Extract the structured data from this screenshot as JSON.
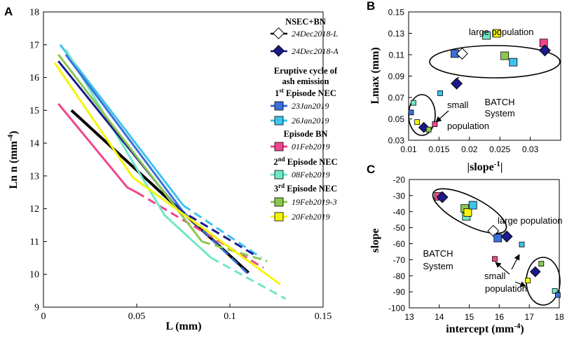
{
  "colors": {
    "nsec_l": "#ffffff",
    "nsec_a": "#1a1a8c",
    "jan23": "#3b6fd9",
    "jan26": "#3ec3ec",
    "feb01": "#f0468c",
    "feb08": "#6ee8c8",
    "feb19": "#8cc850",
    "feb20": "#f5f50a",
    "black": "#000000"
  },
  "chart_data": [
    {
      "panel": "A",
      "type": "line",
      "xlabel": "L (mm)",
      "ylabel": "Ln n (mm",
      "ylabel_sup": "-4",
      "ylabel_close": ")",
      "xlim": [
        0,
        0.15
      ],
      "ylim": [
        9,
        18
      ],
      "xticks": [
        0,
        0.05,
        0.1,
        0.15
      ],
      "xtick_labels": [
        "0",
        "0.05",
        "0.1",
        "0.15"
      ],
      "yticks": [
        9,
        10,
        11,
        12,
        13,
        14,
        15,
        16,
        17,
        18
      ],
      "ytick_labels": [
        "9",
        "10",
        "11",
        "12",
        "13",
        "14",
        "15",
        "16",
        "17",
        "18"
      ],
      "series": [
        {
          "name": "black",
          "color": "#000000",
          "dash": false,
          "width": 4,
          "points": [
            [
              0.015,
              15.0
            ],
            [
              0.11,
              10.05
            ]
          ]
        },
        {
          "name": "01Feb2019",
          "color": "#f0468c",
          "dash": false,
          "width": 3,
          "points": [
            [
              0.008,
              15.2
            ],
            [
              0.045,
              12.65
            ],
            [
              0.05,
              12.5
            ]
          ]
        },
        {
          "name": "01Feb2019-tail",
          "color": "#f0468c",
          "dash": true,
          "width": 3,
          "points": [
            [
              0.05,
              12.5
            ],
            [
              0.118,
              10.2
            ]
          ]
        },
        {
          "name": "26Jan2019",
          "color": "#3ec3ec",
          "dash": false,
          "width": 3,
          "points": [
            [
              0.009,
              17.0
            ],
            [
              0.075,
              12.1
            ]
          ]
        },
        {
          "name": "26Jan2019-tail",
          "color": "#3ec3ec",
          "dash": true,
          "width": 3,
          "points": [
            [
              0.075,
              12.1
            ],
            [
              0.117,
              10.5
            ]
          ]
        },
        {
          "name": "08Feb2019",
          "color": "#6ee8c8",
          "dash": false,
          "width": 3,
          "points": [
            [
              0.012,
              16.85
            ],
            [
              0.065,
              11.8
            ],
            [
              0.09,
              10.5
            ]
          ]
        },
        {
          "name": "08Feb2019-tail",
          "color": "#6ee8c8",
          "dash": true,
          "width": 3,
          "points": [
            [
              0.09,
              10.5
            ],
            [
              0.13,
              9.25
            ]
          ]
        },
        {
          "name": "23Jan2019",
          "color": "#3b6fd9",
          "dash": false,
          "width": 3,
          "points": [
            [
              0.012,
              16.7
            ],
            [
              0.075,
              11.9
            ]
          ]
        },
        {
          "name": "23Jan2019-tail",
          "color": "#3b6fd9",
          "dash": true,
          "width": 3,
          "points": [
            [
              0.075,
              11.9
            ],
            [
              0.11,
              10.0
            ]
          ]
        },
        {
          "name": "24Dec2018-A",
          "color": "#1a1a8c",
          "dash": false,
          "width": 3,
          "points": [
            [
              0.008,
              16.5
            ],
            [
              0.072,
              12.0
            ]
          ]
        },
        {
          "name": "24Dec2018-A-tail",
          "color": "#1a1a8c",
          "dash": true,
          "width": 3,
          "points": [
            [
              0.072,
              12.0
            ],
            [
              0.113,
              10.6
            ]
          ]
        },
        {
          "name": "19Feb2019-3",
          "color": "#8cc850",
          "dash": false,
          "width": 3,
          "points": [
            [
              0.008,
              16.7
            ],
            [
              0.085,
              11.0
            ]
          ]
        },
        {
          "name": "19Feb2019-3-tail",
          "color": "#8cc850",
          "dash": true,
          "width": 3,
          "points": [
            [
              0.085,
              11.0
            ],
            [
              0.12,
              10.4
            ]
          ]
        },
        {
          "name": "20Feb2019",
          "color": "#f5f50a",
          "dash": false,
          "width": 3,
          "points": [
            [
              0.006,
              16.45
            ],
            [
              0.048,
              12.95
            ],
            [
              0.127,
              9.7
            ]
          ]
        }
      ],
      "legend": {
        "title1": "NSEC+BN",
        "entries_nsec": [
          {
            "label": "24Dec2018-L",
            "color": "#ffffff",
            "marker": "diamond"
          },
          {
            "label": "24Dec2018-A",
            "color": "#1a1a8c",
            "marker": "diamond"
          }
        ],
        "title2_line1": "Eruptive cycle of",
        "title2_line2": "ash emission",
        "ep1_pre": "1",
        "ep1_sup": "st",
        "ep1_post": " Episode NEC",
        "ep1_entries": [
          {
            "label": "23Jan2019",
            "color": "#3b6fd9"
          },
          {
            "label": "26Jan2019",
            "color": "#3ec3ec"
          }
        ],
        "epbn": "Episode BN",
        "epbn_entries": [
          {
            "label": "01Feb2019",
            "color": "#f0468c"
          }
        ],
        "ep2_pre": "2",
        "ep2_sup": "nd",
        "ep2_post": " Episode NEC",
        "ep2_entries": [
          {
            "label": "08Feb2019",
            "color": "#6ee8c8"
          }
        ],
        "ep3_pre": "3",
        "ep3_sup": "rd",
        "ep3_post": " Episode NEC",
        "ep3_entries": [
          {
            "label": "19Feb2019-3",
            "color": "#8cc850"
          },
          {
            "label": "20Feb2019",
            "color": "#f5f50a"
          }
        ]
      }
    },
    {
      "panel": "B",
      "type": "scatter",
      "xlabel": "|slope",
      "xlabel_sup": "-1",
      "xlabel_close": "|",
      "ylabel": "Lmax (mm)",
      "xlim": [
        0.01,
        0.035
      ],
      "ylim": [
        0.03,
        0.15
      ],
      "xticks": [
        0.01,
        0.015,
        0.02,
        0.025,
        0.03
      ],
      "xtick_labels": [
        "0.01",
        "0.015",
        "0.02",
        "0.025",
        "0.03"
      ],
      "yticks": [
        0.03,
        0.05,
        0.07,
        0.09,
        0.11,
        0.13,
        0.15
      ],
      "ytick_labels": [
        "0.03",
        "0.05",
        "0.07",
        "0.09",
        "0.11",
        "0.13",
        "0.15"
      ],
      "points": [
        {
          "x": 0.0104,
          "y": 0.056,
          "color": "#3b6fd9",
          "marker": "square",
          "size": "s"
        },
        {
          "x": 0.0108,
          "y": 0.065,
          "color": "#6ee8c8",
          "marker": "square",
          "size": "s"
        },
        {
          "x": 0.0114,
          "y": 0.047,
          "color": "#f5f50a",
          "marker": "square",
          "size": "s"
        },
        {
          "x": 0.0125,
          "y": 0.042,
          "color": "#1a1a8c",
          "marker": "diamond",
          "size": "m"
        },
        {
          "x": 0.0133,
          "y": 0.04,
          "color": "#8cc850",
          "marker": "square",
          "size": "s"
        },
        {
          "x": 0.0143,
          "y": 0.045,
          "color": "#f0468c",
          "marker": "square",
          "size": "s"
        },
        {
          "x": 0.0152,
          "y": 0.074,
          "color": "#3ec3ec",
          "marker": "square",
          "size": "s"
        },
        {
          "x": 0.0176,
          "y": 0.111,
          "color": "#3b6fd9",
          "marker": "square",
          "size": "l"
        },
        {
          "x": 0.0179,
          "y": 0.083,
          "color": "#1a1a8c",
          "marker": "diamond",
          "size": "l"
        },
        {
          "x": 0.0188,
          "y": 0.111,
          "color": "#ffffff",
          "marker": "diamond",
          "size": "l"
        },
        {
          "x": 0.0228,
          "y": 0.128,
          "color": "#6ee8c8",
          "marker": "square",
          "size": "l"
        },
        {
          "x": 0.0245,
          "y": 0.13,
          "color": "#f5f50a",
          "marker": "square",
          "size": "l"
        },
        {
          "x": 0.0258,
          "y": 0.109,
          "color": "#8cc850",
          "marker": "square",
          "size": "l"
        },
        {
          "x": 0.0272,
          "y": 0.103,
          "color": "#3ec3ec",
          "marker": "square",
          "size": "l"
        },
        {
          "x": 0.0322,
          "y": 0.121,
          "color": "#f0468c",
          "marker": "square",
          "size": "l"
        },
        {
          "x": 0.0324,
          "y": 0.114,
          "color": "#1a1a8c",
          "marker": "diamond",
          "size": "l"
        }
      ],
      "annotations": {
        "large": "large population",
        "small_line1": "small",
        "small_line2": "population",
        "batch_line1": "BATCH",
        "batch_line2": "System"
      }
    },
    {
      "panel": "C",
      "type": "scatter",
      "xlabel": "intercept (mm",
      "xlabel_sup": "-4",
      "xlabel_close": ")",
      "ylabel": "slope",
      "xlim": [
        13,
        18
      ],
      "ylim": [
        -100,
        -20
      ],
      "xticks": [
        13,
        14,
        15,
        16,
        17,
        18
      ],
      "xtick_labels": [
        "13",
        "14",
        "15",
        "16",
        "17",
        "18"
      ],
      "yticks": [
        -100,
        -90,
        -80,
        -70,
        -60,
        -50,
        -40,
        -30,
        -20
      ],
      "ytick_labels": [
        "-100",
        "-90",
        "-80",
        "-70",
        "-60",
        "-50",
        "-40",
        "-30",
        "-20"
      ],
      "points": [
        {
          "x": 13.97,
          "y": -30.5,
          "color": "#f0468c",
          "marker": "square",
          "size": "l"
        },
        {
          "x": 14.1,
          "y": -31,
          "color": "#1a1a8c",
          "marker": "diamond",
          "size": "l"
        },
        {
          "x": 14.85,
          "y": -38,
          "color": "#8cc850",
          "marker": "square",
          "size": "l"
        },
        {
          "x": 14.9,
          "y": -43,
          "color": "#6ee8c8",
          "marker": "square",
          "size": "l"
        },
        {
          "x": 14.95,
          "y": -40.5,
          "color": "#f5f50a",
          "marker": "square",
          "size": "l"
        },
        {
          "x": 15.12,
          "y": -36,
          "color": "#3ec3ec",
          "marker": "square",
          "size": "l"
        },
        {
          "x": 15.8,
          "y": -52,
          "color": "#ffffff",
          "marker": "diamond",
          "size": "l"
        },
        {
          "x": 15.95,
          "y": -56.5,
          "color": "#3b6fd9",
          "marker": "square",
          "size": "l"
        },
        {
          "x": 16.25,
          "y": -55.5,
          "color": "#1a1a8c",
          "marker": "diamond",
          "size": "l"
        },
        {
          "x": 15.85,
          "y": -69.5,
          "color": "#f0468c",
          "marker": "square",
          "size": "s"
        },
        {
          "x": 16.75,
          "y": -60.5,
          "color": "#3ec3ec",
          "marker": "square",
          "size": "s"
        },
        {
          "x": 16.95,
          "y": -83,
          "color": "#f5f50a",
          "marker": "square",
          "size": "s"
        },
        {
          "x": 17.2,
          "y": -77.5,
          "color": "#1a1a8c",
          "marker": "diamond",
          "size": "m"
        },
        {
          "x": 17.4,
          "y": -72.5,
          "color": "#8cc850",
          "marker": "square",
          "size": "s"
        },
        {
          "x": 17.85,
          "y": -89.5,
          "color": "#6ee8c8",
          "marker": "square",
          "size": "s"
        },
        {
          "x": 17.95,
          "y": -92,
          "color": "#3b6fd9",
          "marker": "square",
          "size": "s"
        }
      ],
      "annotations": {
        "large": "large population",
        "small_line1": "small",
        "small_line2": "population",
        "batch_line1": "BATCH",
        "batch_line2": "System"
      }
    }
  ]
}
